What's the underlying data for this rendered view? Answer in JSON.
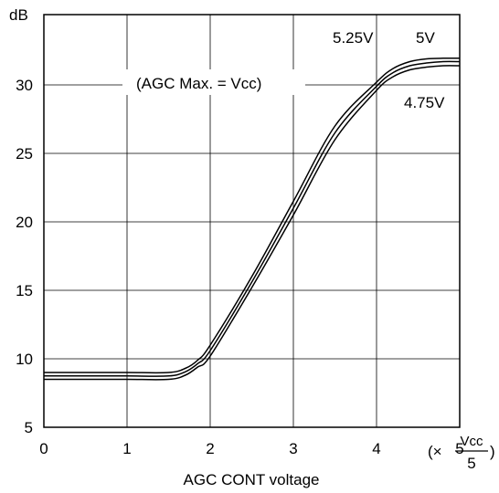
{
  "chart_data": {
    "type": "line",
    "title": "",
    "ylabel": "dB",
    "xlabel": "AGC CONT voltage",
    "x_unit_prefix": "(×",
    "x_unit_num": "Vcc",
    "x_unit_den": "5",
    "x_unit_suffix": ")",
    "xlim": [
      0,
      5
    ],
    "ylim": [
      5,
      33
    ],
    "x_ticks": [
      "0",
      "1",
      "2",
      "3",
      "4",
      "5"
    ],
    "y_ticks": [
      "5",
      "10",
      "15",
      "20",
      "25",
      "30"
    ],
    "grid": true,
    "annotation": "(AGC Max. = Vcc)",
    "series": [
      {
        "name": "5.25V",
        "x": [
          0,
          0.5,
          1,
          1.5,
          1.7,
          1.85,
          2.0,
          2.5,
          3.0,
          3.5,
          4.0,
          4.2,
          4.4,
          4.6,
          4.8,
          5.0
        ],
        "y": [
          9.0,
          9.0,
          9.0,
          9.0,
          9.3,
          9.9,
          11.0,
          16.0,
          21.5,
          27.0,
          30.2,
          31.2,
          31.7,
          31.9,
          31.95,
          31.95
        ]
      },
      {
        "name": "5V",
        "x": [
          0,
          0.5,
          1,
          1.5,
          1.7,
          1.85,
          2.0,
          2.5,
          3.0,
          3.5,
          4.0,
          4.2,
          4.4,
          4.6,
          4.8,
          5.0
        ],
        "y": [
          8.75,
          8.75,
          8.75,
          8.75,
          9.05,
          9.65,
          10.6,
          15.6,
          21.0,
          26.5,
          29.9,
          30.9,
          31.4,
          31.6,
          31.7,
          31.7
        ]
      },
      {
        "name": "4.75V",
        "x": [
          0,
          0.5,
          1,
          1.5,
          1.7,
          1.85,
          2.0,
          2.5,
          3.0,
          3.5,
          4.0,
          4.2,
          4.4,
          4.6,
          4.8,
          5.0
        ],
        "y": [
          8.5,
          8.5,
          8.5,
          8.5,
          8.8,
          9.4,
          10.2,
          15.2,
          20.5,
          26.0,
          29.6,
          30.6,
          31.1,
          31.3,
          31.4,
          31.4
        ]
      }
    ]
  }
}
